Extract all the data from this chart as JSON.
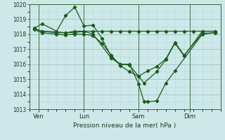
{
  "xlabel": "Pression niveau de la mer( hPa )",
  "bg_color": "#cce8e8",
  "grid_color_major": "#99bbbb",
  "grid_color_minor": "#bbdddd",
  "line_color": "#1a5c1a",
  "ylim": [
    1013,
    1020
  ],
  "yticks": [
    1013,
    1014,
    1015,
    1016,
    1017,
    1018,
    1019,
    1020
  ],
  "xlim": [
    0,
    10.5
  ],
  "xtick_labels": [
    "Ven",
    "Lun",
    "Sam",
    "Dim"
  ],
  "xtick_positions": [
    0.5,
    3.0,
    6.0,
    8.8
  ],
  "vline_positions": [
    0.5,
    3.0,
    6.0,
    8.8
  ],
  "lines": [
    {
      "x": [
        0.3,
        0.7,
        1.5,
        2.0,
        2.5,
        3.0,
        3.5,
        4.0,
        4.5,
        5.0,
        5.5,
        6.0,
        6.3,
        6.5,
        7.0,
        7.5,
        8.0,
        9.5,
        10.2
      ],
      "y": [
        1018.4,
        1018.7,
        1018.2,
        1019.25,
        1019.8,
        1018.55,
        1018.6,
        1017.7,
        1016.5,
        1016.0,
        1016.0,
        1014.7,
        1013.5,
        1013.5,
        1013.55,
        1014.75,
        1015.55,
        1018.0,
        1018.1
      ]
    },
    {
      "x": [
        0.3,
        0.7,
        1.5,
        2.0,
        2.5,
        3.0,
        3.5,
        4.5,
        5.0,
        5.5,
        6.0,
        6.3,
        7.0,
        7.5,
        8.0,
        8.5,
        9.5,
        10.2
      ],
      "y": [
        1018.35,
        1018.2,
        1018.1,
        1018.1,
        1018.2,
        1018.2,
        1018.0,
        1016.4,
        1016.0,
        1015.95,
        1015.2,
        1014.75,
        1015.5,
        1016.3,
        1017.4,
        1016.55,
        1018.2,
        1018.2
      ]
    },
    {
      "x": [
        0.3,
        0.7,
        1.5,
        2.0,
        2.5,
        3.0,
        3.5,
        4.0,
        4.5,
        5.0,
        5.5,
        6.0,
        6.5,
        7.0,
        7.5,
        8.0,
        8.5,
        9.0,
        9.5,
        10.2
      ],
      "y": [
        1018.35,
        1018.2,
        1018.15,
        1018.1,
        1018.1,
        1018.2,
        1018.2,
        1018.2,
        1018.2,
        1018.2,
        1018.2,
        1018.2,
        1018.2,
        1018.2,
        1018.2,
        1018.2,
        1018.2,
        1018.2,
        1018.2,
        1018.2
      ]
    },
    {
      "x": [
        0.3,
        0.7,
        1.5,
        2.0,
        2.5,
        3.0,
        3.5,
        4.0,
        4.5,
        5.0,
        5.5,
        6.0,
        6.5,
        7.0,
        7.5,
        8.0,
        8.5,
        9.5,
        10.2
      ],
      "y": [
        1018.3,
        1018.1,
        1018.0,
        1017.95,
        1018.0,
        1018.0,
        1017.9,
        1017.4,
        1016.6,
        1015.9,
        1015.5,
        1015.2,
        1015.55,
        1015.85,
        1016.35,
        1017.45,
        1016.6,
        1018.05,
        1018.1
      ]
    }
  ]
}
